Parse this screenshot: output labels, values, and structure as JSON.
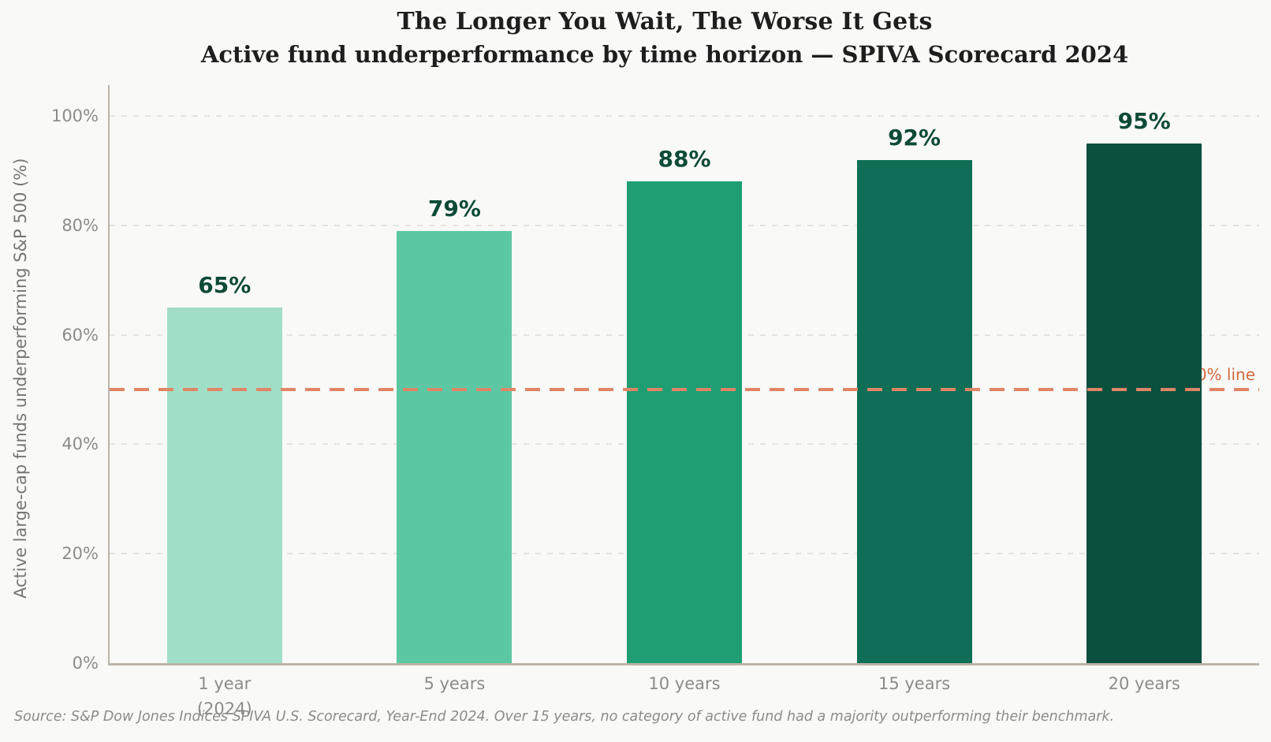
{
  "chart_data": {
    "type": "bar",
    "title": "The Longer You Wait, The Worse It Gets",
    "subtitle": "Active fund underperformance by time horizon — SPIVA Scorecard 2024",
    "categories": [
      "1 year\n(2024)",
      "5 years",
      "10 years",
      "15 years",
      "20 years"
    ],
    "values": [
      65,
      79,
      88,
      92,
      95
    ],
    "data_labels": [
      "65%",
      "79%",
      "88%",
      "92%",
      "95%"
    ],
    "bar_colors": [
      "#a1dec7",
      "#5bc8a3",
      "#1f9e74",
      "#106e56",
      "#0b4f3f"
    ],
    "xlabel": "",
    "ylabel": "Active large-cap funds underperforming S&P 500 (%)",
    "ylim": [
      0,
      105
    ],
    "yticks": [
      0,
      20,
      40,
      60,
      80,
      100
    ],
    "ytick_labels": [
      "0%",
      "20%",
      "40%",
      "60%",
      "80%",
      "100%"
    ],
    "grid": "horizontal dashed",
    "legend": "none",
    "reference_line": {
      "value": 50,
      "label": "50% line",
      "line_color": "#e08565",
      "label_color": "#d2693f"
    },
    "colors": {
      "background": "#f9f9f7",
      "value_label": "#0d4a38",
      "title_text": "#1e1e1e",
      "tick_text": "#8c8c87",
      "axis_spine": "#bab4a9",
      "gridline": "#e4e4df",
      "source_text": "#8b8b87"
    },
    "source_note": "Source: S&P Dow Jones Indices SPIVA U.S. Scorecard, Year-End 2024. Over 15 years, no category of active fund had a majority outperforming their benchmark."
  }
}
